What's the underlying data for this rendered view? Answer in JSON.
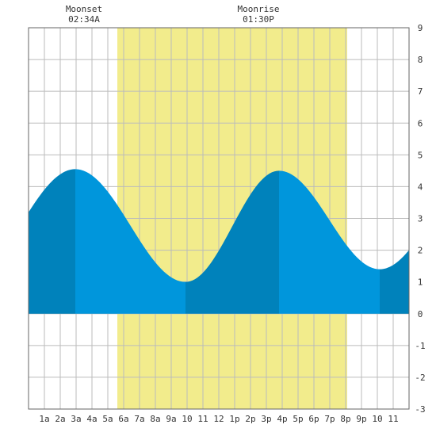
{
  "chart_data": {
    "type": "area",
    "title": "",
    "xlabel": "",
    "ylabel": "",
    "xlim": [
      0,
      24
    ],
    "ylim": [
      -3,
      9
    ],
    "grid": true,
    "x_ticks": [
      {
        "x": 1,
        "label": "1a"
      },
      {
        "x": 2,
        "label": "2a"
      },
      {
        "x": 3,
        "label": "3a"
      },
      {
        "x": 4,
        "label": "4a"
      },
      {
        "x": 5,
        "label": "5a"
      },
      {
        "x": 6,
        "label": "6a"
      },
      {
        "x": 7,
        "label": "7a"
      },
      {
        "x": 8,
        "label": "8a"
      },
      {
        "x": 9,
        "label": "9a"
      },
      {
        "x": 10,
        "label": "10"
      },
      {
        "x": 11,
        "label": "11"
      },
      {
        "x": 12,
        "label": "12"
      },
      {
        "x": 13,
        "label": "1p"
      },
      {
        "x": 14,
        "label": "2p"
      },
      {
        "x": 15,
        "label": "3p"
      },
      {
        "x": 16,
        "label": "4p"
      },
      {
        "x": 17,
        "label": "5p"
      },
      {
        "x": 18,
        "label": "6p"
      },
      {
        "x": 19,
        "label": "7p"
      },
      {
        "x": 20,
        "label": "8p"
      },
      {
        "x": 21,
        "label": "9p"
      },
      {
        "x": 22,
        "label": "10"
      },
      {
        "x": 23,
        "label": "11"
      }
    ],
    "y_ticks": [
      -3,
      -2,
      -1,
      0,
      1,
      2,
      3,
      4,
      5,
      6,
      7,
      8,
      9
    ],
    "daylight": {
      "start": 5.6,
      "end": 20.1
    },
    "tide_extremes": [
      {
        "hour": 2.95,
        "height": 4.55,
        "type": "high"
      },
      {
        "hour": 9.9,
        "height": 1.0,
        "type": "low"
      },
      {
        "hour": 15.8,
        "height": 4.5,
        "type": "high"
      },
      {
        "hour": 22.15,
        "height": 1.4,
        "type": "low"
      }
    ],
    "series": [
      {
        "x": [
          0,
          24
        ],
        "values": [
          3.1,
          2.3
        ]
      }
    ],
    "annotations": [
      {
        "x": 3.5,
        "title": "Moonset",
        "time": "02:34A"
      },
      {
        "x": 14.5,
        "title": "Moonrise",
        "time": "01:30P"
      }
    ]
  },
  "colors": {
    "daylight": "#f2ec8c",
    "tide_light": "#0096dc",
    "tide_dark": "#0082bb",
    "grid": "#bbbbbb",
    "border": "#666666"
  }
}
